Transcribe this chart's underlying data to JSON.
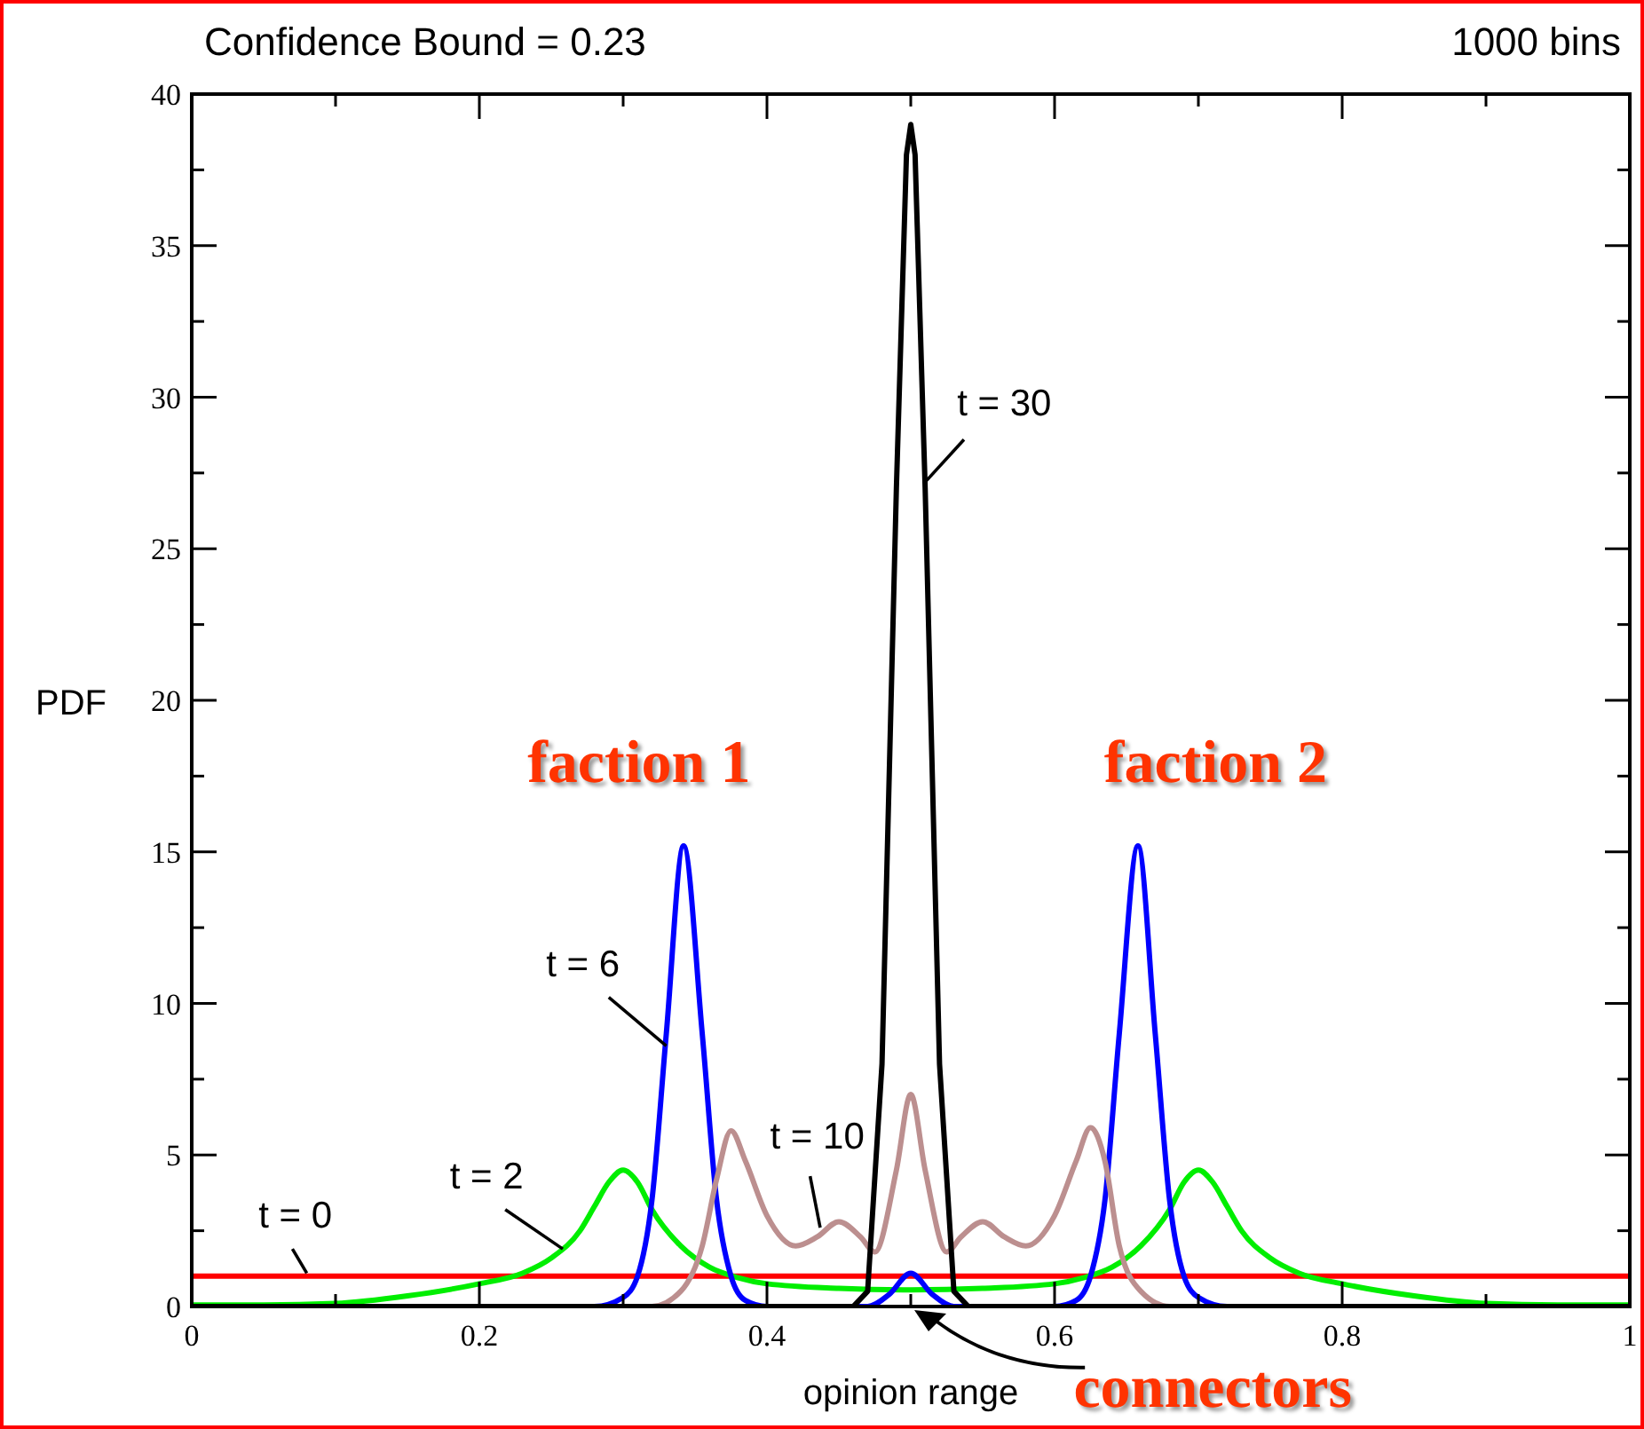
{
  "chart_data": {
    "type": "line",
    "title": "Confidence Bound = 0.23",
    "subtitle": "1000 bins",
    "xlabel": "opinion range",
    "ylabel": "PDF",
    "xlim": [
      0,
      1
    ],
    "ylim": [
      0,
      40
    ],
    "xticks": [
      0,
      {
        "value": 0.1,
        "label": null
      },
      0.2,
      {
        "value": 0.3,
        "label": null
      },
      0.4,
      {
        "value": 0.5,
        "label": null
      },
      0.6,
      {
        "value": 0.7,
        "label": null
      },
      0.8,
      {
        "value": 0.9,
        "label": null
      },
      1
    ],
    "yticks": [
      0,
      {
        "value": 2.5,
        "label": null
      },
      5,
      {
        "value": 7.5,
        "label": null
      },
      10,
      {
        "value": 12.5,
        "label": null
      },
      15,
      {
        "value": 17.5,
        "label": null
      },
      20,
      {
        "value": 22.5,
        "label": null
      },
      25,
      {
        "value": 27.5,
        "label": null
      },
      30,
      {
        "value": 32.5,
        "label": null
      },
      35,
      {
        "value": 37.5,
        "label": null
      },
      40
    ],
    "grid": false,
    "line_style": "solid",
    "series": [
      {
        "color": "#ff0000",
        "x": [
          0,
          1
        ],
        "values": [
          1,
          1
        ]
      },
      {
        "color": "#00ee00",
        "x": [
          0,
          0.05,
          0.1,
          0.15,
          0.2,
          0.23,
          0.25,
          0.27,
          0.28,
          0.29,
          0.3,
          0.31,
          0.32,
          0.34,
          0.36,
          0.38,
          0.4,
          0.45,
          0.5,
          0.55,
          0.6,
          0.62,
          0.64,
          0.66,
          0.68,
          0.69,
          0.7,
          0.71,
          0.72,
          0.73,
          0.75,
          0.77,
          0.8,
          0.85,
          0.9,
          0.95,
          1
        ],
        "values": [
          0.05,
          0.05,
          0.1,
          0.35,
          0.75,
          1.1,
          1.6,
          2.5,
          3.3,
          4.1,
          4.5,
          4.1,
          3.2,
          2.0,
          1.3,
          0.95,
          0.75,
          0.6,
          0.55,
          0.6,
          0.75,
          0.95,
          1.3,
          2.0,
          3.2,
          4.1,
          4.5,
          4.1,
          3.3,
          2.5,
          1.6,
          1.1,
          0.75,
          0.35,
          0.1,
          0.05,
          0.05
        ]
      },
      {
        "color": "#0000ff",
        "x": [
          0,
          0.28,
          0.3,
          0.31,
          0.32,
          0.33,
          0.342,
          0.355,
          0.365,
          0.375,
          0.385,
          0.4,
          0.47,
          0.485,
          0.5,
          0.515,
          0.53,
          0.6,
          0.615,
          0.625,
          0.635,
          0.645,
          0.658,
          0.67,
          0.68,
          0.69,
          0.7,
          0.72,
          1
        ],
        "values": [
          0,
          0,
          0.3,
          1,
          3.5,
          9,
          15.2,
          9,
          3.5,
          1,
          0.2,
          0,
          0,
          0.4,
          1.1,
          0.4,
          0,
          0,
          0.2,
          1,
          3.5,
          9,
          15.2,
          9,
          3.5,
          1,
          0.3,
          0,
          0
        ]
      },
      {
        "color": "#bc8f8f",
        "x": [
          0,
          0.32,
          0.34,
          0.355,
          0.365,
          0.375,
          0.385,
          0.4,
          0.42,
          0.435,
          0.45,
          0.465,
          0.475,
          0.49,
          0.5,
          0.51,
          0.525,
          0.535,
          0.55,
          0.565,
          0.58,
          0.6,
          0.615,
          0.625,
          0.635,
          0.645,
          0.66,
          0.68,
          1
        ],
        "values": [
          0,
          0,
          0.5,
          2,
          4.2,
          5.8,
          4.8,
          3,
          2.0,
          2.3,
          2.8,
          2.3,
          1.8,
          4.5,
          7.0,
          4.5,
          1.8,
          2.3,
          2.8,
          2.3,
          2.0,
          3,
          4.8,
          5.9,
          4.8,
          2,
          0.5,
          0,
          0
        ]
      },
      {
        "color": "#000000",
        "x": [
          0,
          0.46,
          0.47,
          0.48,
          0.49,
          0.497,
          0.5,
          0.503,
          0.51,
          0.52,
          0.53,
          0.54,
          1
        ],
        "values": [
          0,
          0,
          0.5,
          8,
          27,
          38,
          39,
          38,
          27,
          8,
          0.5,
          0,
          0
        ]
      }
    ],
    "annotations": [
      "t = 0",
      "t = 2",
      "t = 6",
      "t = 10",
      "t = 30",
      "faction 1",
      "faction 2",
      "connectors"
    ]
  }
}
